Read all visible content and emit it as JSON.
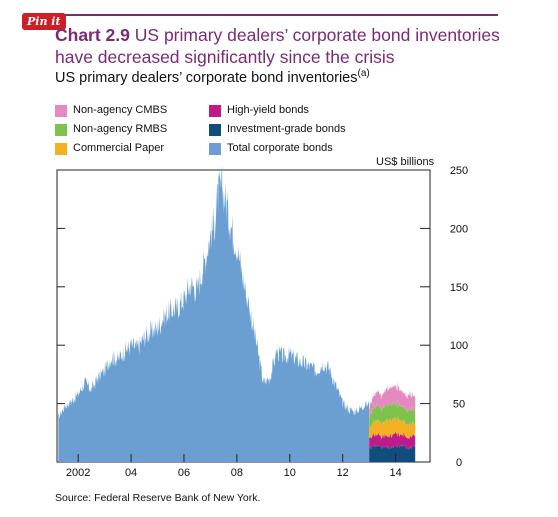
{
  "badge": {
    "label": "Pin it"
  },
  "header": {
    "chart_number": "Chart 2.9",
    "title": "US primary dealers’ corporate bond inventories have decreased significantly since the crisis",
    "subtitle": "US primary dealers’ corporate bond inventories",
    "subtitle_note": "(a)"
  },
  "source": "Source: Federal Reserve Bank of New York.",
  "colors": {
    "title": "#7a2a76",
    "total": "#6b9fd2",
    "nonagency_cmbs": "#e58ac0",
    "nonagency_rmbs": "#7dc24b",
    "commercial_paper": "#f5b021",
    "high_yield": "#c0198b",
    "investment_grade": "#114d7c"
  },
  "chart_data": {
    "type": "area",
    "title": "US primary dealers’ corporate bond inventories",
    "ylabel": "US$ billions",
    "ylim": [
      0,
      250
    ],
    "yticks": [
      0,
      50,
      100,
      150,
      200,
      250
    ],
    "xlim": [
      2001.2,
      2015.3
    ],
    "xticks": [
      2002,
      2004,
      2006,
      2008,
      2010,
      2012,
      2014
    ],
    "xtick_labels": [
      "2002",
      "04",
      "06",
      "08",
      "10",
      "12",
      "14"
    ],
    "legend": {
      "placement": "top-left",
      "entries": [
        {
          "key": "nonagency_cmbs",
          "label": "Non-agency CMBS"
        },
        {
          "key": "high_yield",
          "label": "High-yield bonds"
        },
        {
          "key": "nonagency_rmbs",
          "label": "Non-agency RMBS"
        },
        {
          "key": "investment_grade",
          "label": "Investment-grade bonds"
        },
        {
          "key": "commercial_paper",
          "label": "Commercial Paper"
        },
        {
          "key": "total",
          "label": "Total corporate bonds"
        }
      ]
    },
    "total_corporate_bonds": {
      "x": [
        2001.25,
        2001.5,
        2001.75,
        2002.0,
        2002.25,
        2002.5,
        2002.75,
        2003.0,
        2003.25,
        2003.5,
        2003.75,
        2004.0,
        2004.25,
        2004.5,
        2004.75,
        2005.0,
        2005.25,
        2005.5,
        2005.75,
        2006.0,
        2006.25,
        2006.5,
        2006.75,
        2007.0,
        2007.15,
        2007.3,
        2007.45,
        2007.6,
        2007.75,
        2008.0,
        2008.25,
        2008.5,
        2008.75,
        2009.0,
        2009.25,
        2009.5,
        2009.75,
        2010.0,
        2010.25,
        2010.5,
        2010.75,
        2011.0,
        2011.25,
        2011.5,
        2011.75,
        2012.0,
        2012.25,
        2012.5,
        2012.75,
        2013.0
      ],
      "values": [
        38,
        48,
        52,
        58,
        68,
        62,
        72,
        78,
        90,
        88,
        95,
        100,
        98,
        107,
        112,
        115,
        125,
        130,
        132,
        140,
        152,
        148,
        170,
        195,
        205,
        230,
        235,
        222,
        205,
        185,
        155,
        130,
        100,
        68,
        72,
        95,
        90,
        92,
        88,
        85,
        82,
        78,
        85,
        80,
        65,
        50,
        45,
        43,
        48,
        50
      ]
    },
    "series": [
      {
        "key": "investment_grade",
        "name": "Investment-grade bonds",
        "x": [
          2013.0,
          2013.25,
          2013.5,
          2013.75,
          2014.0,
          2014.25,
          2014.5,
          2014.75
        ],
        "values": [
          12,
          14,
          13,
          12,
          13,
          14,
          12,
          13
        ]
      },
      {
        "key": "high_yield",
        "name": "High-yield bonds",
        "x": [
          2013.0,
          2013.25,
          2013.5,
          2013.75,
          2014.0,
          2014.25,
          2014.5,
          2014.75
        ],
        "values": [
          8,
          10,
          9,
          10,
          11,
          9,
          10,
          9
        ]
      },
      {
        "key": "commercial_paper",
        "name": "Commercial Paper",
        "x": [
          2013.0,
          2013.25,
          2013.5,
          2013.75,
          2014.0,
          2014.25,
          2014.5,
          2014.75
        ],
        "values": [
          9,
          12,
          11,
          14,
          13,
          12,
          11,
          10
        ]
      },
      {
        "key": "nonagency_rmbs",
        "name": "Non-agency RMBS",
        "x": [
          2013.0,
          2013.25,
          2013.5,
          2013.75,
          2014.0,
          2014.25,
          2014.5,
          2014.75
        ],
        "values": [
          10,
          13,
          12,
          14,
          13,
          12,
          12,
          11
        ]
      },
      {
        "key": "nonagency_cmbs",
        "name": "Non-agency CMBS",
        "x": [
          2013.0,
          2013.25,
          2013.5,
          2013.75,
          2014.0,
          2014.25,
          2014.5,
          2014.75
        ],
        "values": [
          8,
          11,
          12,
          14,
          15,
          13,
          13,
          12
        ]
      }
    ]
  }
}
